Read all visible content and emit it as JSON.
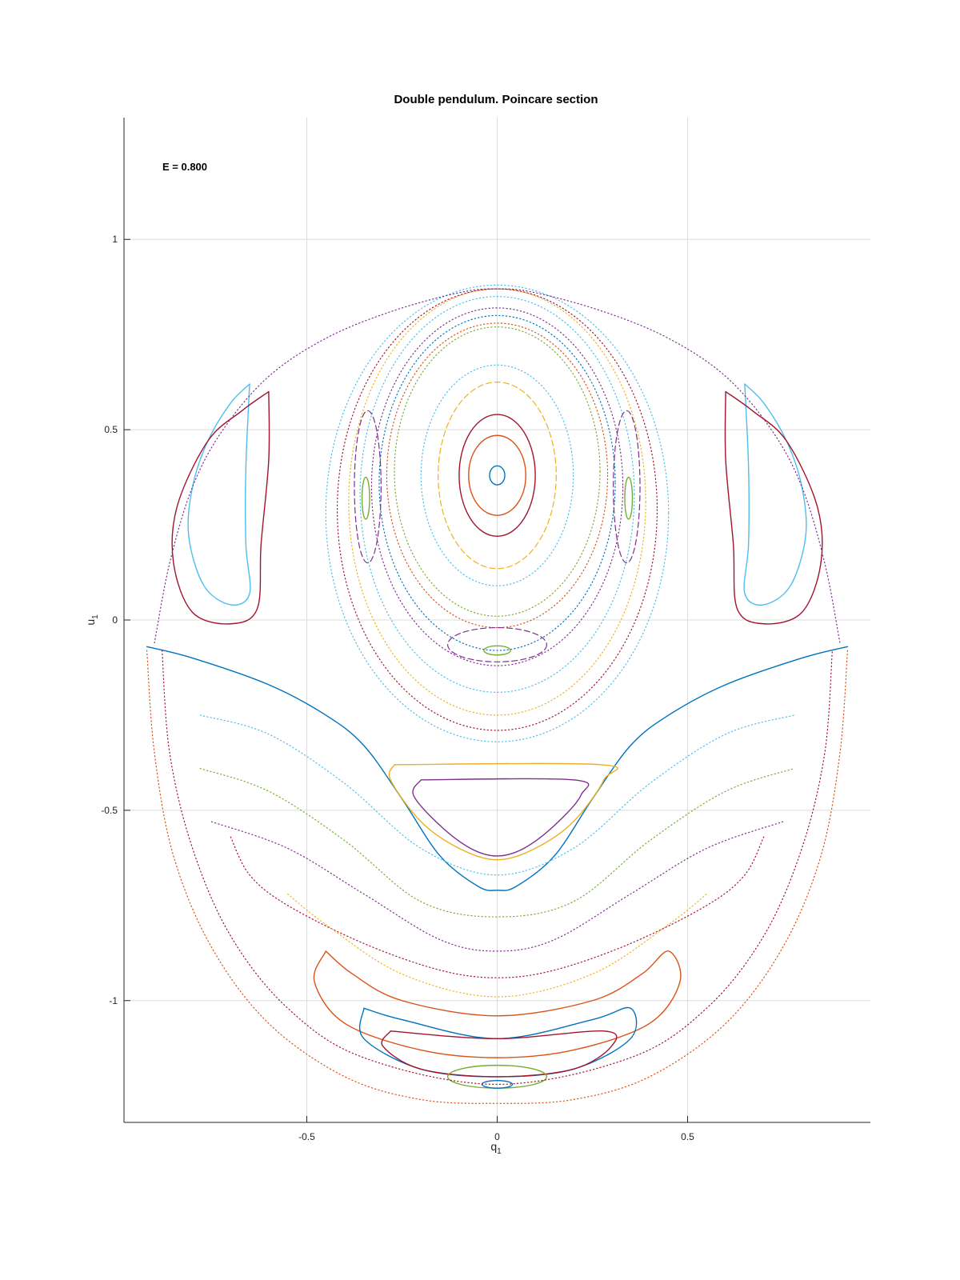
{
  "chart_data": {
    "type": "scatter",
    "title": "Double pendulum. Poincare section",
    "xlabel": "q",
    "xlabel_sub": "1",
    "ylabel": "u",
    "ylabel_sub": "1",
    "annotation": "E = 0.800",
    "xlim": [
      -0.98,
      0.98
    ],
    "ylim": [
      -1.32,
      1.32
    ],
    "xticks": [
      -0.5,
      0,
      0.5
    ],
    "xtick_labels": [
      "-0.5",
      "0",
      "0.5"
    ],
    "yticks": [
      -1,
      -0.5,
      0,
      0.5,
      1
    ],
    "ytick_labels": [
      "-1",
      "-0.5",
      "0",
      "0.5",
      "1"
    ],
    "grid": true,
    "colors": [
      "#0072BD",
      "#D95319",
      "#EDB120",
      "#7E2F8E",
      "#77AC30",
      "#4DBEEE",
      "#A2142F"
    ],
    "series": [
      {
        "shape": "ellipse",
        "style": "solid",
        "color": 0,
        "cx": 0,
        "cy": 0.38,
        "rx": 0.02,
        "ry": 0.025
      },
      {
        "shape": "ellipse",
        "style": "solid",
        "color": 1,
        "cx": 0,
        "cy": 0.38,
        "rx": 0.075,
        "ry": 0.105
      },
      {
        "shape": "ellipse",
        "style": "solid",
        "color": 6,
        "cx": 0,
        "cy": 0.38,
        "rx": 0.1,
        "ry": 0.16
      },
      {
        "shape": "ellipse",
        "style": "dash",
        "color": 2,
        "cx": 0,
        "cy": 0.38,
        "rx": 0.155,
        "ry": 0.245
      },
      {
        "shape": "ellipse",
        "style": "dot",
        "color": 5,
        "cx": 0,
        "cy": 0.38,
        "rx": 0.2,
        "ry": 0.29
      },
      {
        "shape": "ellipse",
        "style": "dot",
        "color": 4,
        "cx": 0,
        "cy": 0.39,
        "rx": 0.27,
        "ry": 0.38
      },
      {
        "shape": "ellipse",
        "style": "dot",
        "color": 1,
        "cx": 0,
        "cy": 0.38,
        "rx": 0.29,
        "ry": 0.4
      },
      {
        "shape": "ellipse",
        "style": "dot",
        "color": 0,
        "cx": 0,
        "cy": 0.36,
        "rx": 0.31,
        "ry": 0.44
      },
      {
        "shape": "ellipse",
        "style": "dot",
        "color": 3,
        "cx": 0,
        "cy": 0.35,
        "rx": 0.33,
        "ry": 0.47
      },
      {
        "shape": "ellipse",
        "style": "dot",
        "color": 5,
        "cx": 0,
        "cy": 0.33,
        "rx": 0.36,
        "ry": 0.52
      },
      {
        "shape": "ellipse",
        "style": "dot",
        "color": 2,
        "cx": 0,
        "cy": 0.31,
        "rx": 0.39,
        "ry": 0.56
      },
      {
        "shape": "ellipse",
        "style": "dot",
        "color": 6,
        "cx": 0,
        "cy": 0.29,
        "rx": 0.42,
        "ry": 0.58
      },
      {
        "shape": "ellipse",
        "style": "dot",
        "color": 5,
        "cx": 0,
        "cy": 0.28,
        "rx": 0.45,
        "ry": 0.6
      },
      {
        "shape": "ellipse",
        "style": "solid",
        "color": 4,
        "cx": -0.345,
        "cy": 0.32,
        "rx": 0.01,
        "ry": 0.055
      },
      {
        "shape": "ellipse",
        "style": "solid",
        "color": 4,
        "cx": 0.345,
        "cy": 0.32,
        "rx": 0.01,
        "ry": 0.055
      },
      {
        "shape": "ellipse",
        "style": "dash",
        "color": 3,
        "cx": -0.34,
        "cy": 0.35,
        "rx": 0.035,
        "ry": 0.2
      },
      {
        "shape": "ellipse",
        "style": "dash",
        "color": 3,
        "cx": 0.34,
        "cy": 0.35,
        "rx": 0.035,
        "ry": 0.2
      },
      {
        "shape": "ellipse",
        "style": "solid",
        "color": 4,
        "cx": 0,
        "cy": -0.08,
        "rx": 0.035,
        "ry": 0.012
      },
      {
        "shape": "ellipse",
        "style": "dash",
        "color": 3,
        "cx": 0,
        "cy": -0.065,
        "rx": 0.13,
        "ry": 0.045
      },
      {
        "shape": "pts",
        "style": "solid",
        "color": 5,
        "points": [
          [
            -0.65,
            0.62
          ],
          [
            -0.7,
            0.57
          ],
          [
            -0.76,
            0.47
          ],
          [
            -0.8,
            0.35
          ],
          [
            -0.81,
            0.22
          ],
          [
            -0.77,
            0.09
          ],
          [
            -0.7,
            0.04
          ],
          [
            -0.65,
            0.07
          ],
          [
            -0.66,
            0.2
          ],
          [
            -0.66,
            0.4
          ],
          [
            -0.65,
            0.62
          ]
        ]
      },
      {
        "shape": "pts",
        "style": "solid",
        "color": 5,
        "points": [
          [
            0.65,
            0.62
          ],
          [
            0.7,
            0.57
          ],
          [
            0.76,
            0.47
          ],
          [
            0.8,
            0.35
          ],
          [
            0.81,
            0.22
          ],
          [
            0.77,
            0.09
          ],
          [
            0.7,
            0.04
          ],
          [
            0.65,
            0.07
          ],
          [
            0.66,
            0.2
          ],
          [
            0.66,
            0.4
          ],
          [
            0.65,
            0.62
          ]
        ]
      },
      {
        "shape": "pts",
        "style": "solid",
        "color": 6,
        "points": [
          [
            -0.6,
            0.6
          ],
          [
            -0.67,
            0.55
          ],
          [
            -0.76,
            0.47
          ],
          [
            -0.84,
            0.3
          ],
          [
            -0.85,
            0.15
          ],
          [
            -0.8,
            0.02
          ],
          [
            -0.7,
            -0.01
          ],
          [
            -0.63,
            0.03
          ],
          [
            -0.62,
            0.2
          ],
          [
            -0.6,
            0.42
          ],
          [
            -0.6,
            0.6
          ]
        ]
      },
      {
        "shape": "pts",
        "style": "solid",
        "color": 6,
        "points": [
          [
            0.6,
            0.6
          ],
          [
            0.67,
            0.55
          ],
          [
            0.76,
            0.47
          ],
          [
            0.84,
            0.3
          ],
          [
            0.85,
            0.15
          ],
          [
            0.8,
            0.02
          ],
          [
            0.7,
            -0.01
          ],
          [
            0.63,
            0.03
          ],
          [
            0.62,
            0.2
          ],
          [
            0.6,
            0.42
          ],
          [
            0.6,
            0.6
          ]
        ]
      },
      {
        "shape": "pts",
        "style": "solid",
        "color": 0,
        "points": [
          [
            -0.92,
            -0.07
          ],
          [
            -0.8,
            -0.1
          ],
          [
            -0.6,
            -0.17
          ],
          [
            -0.45,
            -0.25
          ],
          [
            -0.35,
            -0.33
          ],
          [
            -0.25,
            -0.47
          ],
          [
            -0.15,
            -0.62
          ],
          [
            -0.05,
            -0.7
          ],
          [
            0,
            -0.71
          ],
          [
            0.05,
            -0.7
          ],
          [
            0.15,
            -0.62
          ],
          [
            0.25,
            -0.47
          ],
          [
            0.35,
            -0.33
          ],
          [
            0.45,
            -0.25
          ],
          [
            0.6,
            -0.17
          ],
          [
            0.8,
            -0.1
          ],
          [
            0.92,
            -0.07
          ]
        ]
      },
      {
        "shape": "pts",
        "style": "solid",
        "color": 2,
        "points": [
          [
            -0.27,
            -0.38
          ],
          [
            0.27,
            -0.38
          ],
          [
            0.28,
            -0.42
          ],
          [
            0.2,
            -0.53
          ],
          [
            0.1,
            -0.6
          ],
          [
            0,
            -0.63
          ],
          [
            -0.1,
            -0.6
          ],
          [
            -0.2,
            -0.53
          ],
          [
            -0.28,
            -0.42
          ],
          [
            -0.27,
            -0.38
          ]
        ]
      },
      {
        "shape": "pts",
        "style": "solid",
        "color": 3,
        "points": [
          [
            -0.2,
            -0.42
          ],
          [
            0.2,
            -0.42
          ],
          [
            0.22,
            -0.46
          ],
          [
            0.15,
            -0.54
          ],
          [
            0.07,
            -0.6
          ],
          [
            0,
            -0.62
          ],
          [
            -0.07,
            -0.6
          ],
          [
            -0.15,
            -0.54
          ],
          [
            -0.22,
            -0.46
          ],
          [
            -0.2,
            -0.42
          ]
        ]
      },
      {
        "shape": "pts",
        "style": "dot",
        "color": 5,
        "points": [
          [
            -0.78,
            -0.25
          ],
          [
            -0.6,
            -0.3
          ],
          [
            -0.4,
            -0.43
          ],
          [
            -0.2,
            -0.6
          ],
          [
            0,
            -0.67
          ],
          [
            0.2,
            -0.6
          ],
          [
            0.4,
            -0.43
          ],
          [
            0.6,
            -0.3
          ],
          [
            0.78,
            -0.25
          ]
        ]
      },
      {
        "shape": "pts",
        "style": "dot",
        "color": 4,
        "points": [
          [
            -0.78,
            -0.39
          ],
          [
            -0.6,
            -0.45
          ],
          [
            -0.4,
            -0.58
          ],
          [
            -0.2,
            -0.74
          ],
          [
            0,
            -0.78
          ],
          [
            0.2,
            -0.74
          ],
          [
            0.4,
            -0.58
          ],
          [
            0.6,
            -0.45
          ],
          [
            0.78,
            -0.39
          ]
        ]
      },
      {
        "shape": "pts",
        "style": "dot",
        "color": 3,
        "points": [
          [
            -0.75,
            -0.53
          ],
          [
            -0.55,
            -0.6
          ],
          [
            -0.35,
            -0.72
          ],
          [
            -0.15,
            -0.84
          ],
          [
            0,
            -0.87
          ],
          [
            0.15,
            -0.84
          ],
          [
            0.35,
            -0.72
          ],
          [
            0.55,
            -0.6
          ],
          [
            0.75,
            -0.53
          ]
        ]
      },
      {
        "shape": "pts",
        "style": "dot",
        "color": 6,
        "points": [
          [
            -0.7,
            -0.57
          ],
          [
            -0.65,
            -0.67
          ],
          [
            -0.55,
            -0.75
          ],
          [
            -0.35,
            -0.85
          ],
          [
            -0.15,
            -0.92
          ],
          [
            0,
            -0.94
          ],
          [
            0.15,
            -0.92
          ],
          [
            0.35,
            -0.85
          ],
          [
            0.55,
            -0.75
          ],
          [
            0.65,
            -0.67
          ],
          [
            0.7,
            -0.57
          ]
        ]
      },
      {
        "shape": "pts",
        "style": "dot",
        "color": 2,
        "points": [
          [
            -0.55,
            -0.72
          ],
          [
            -0.45,
            -0.8
          ],
          [
            -0.25,
            -0.93
          ],
          [
            0,
            -0.99
          ],
          [
            0.25,
            -0.93
          ],
          [
            0.45,
            -0.8
          ],
          [
            0.55,
            -0.72
          ]
        ]
      },
      {
        "shape": "pts",
        "style": "solid",
        "color": 1,
        "points": [
          [
            -0.45,
            -0.87
          ],
          [
            -0.38,
            -0.93
          ],
          [
            -0.25,
            -1.0
          ],
          [
            0,
            -1.04
          ],
          [
            0.25,
            -1.0
          ],
          [
            0.38,
            -0.93
          ],
          [
            0.45,
            -0.87
          ],
          [
            0.48,
            -0.95
          ],
          [
            0.4,
            -1.06
          ],
          [
            0.2,
            -1.13
          ],
          [
            0,
            -1.15
          ],
          [
            -0.2,
            -1.13
          ],
          [
            -0.4,
            -1.06
          ],
          [
            -0.48,
            -0.95
          ],
          [
            -0.45,
            -0.87
          ]
        ]
      },
      {
        "shape": "pts",
        "style": "solid",
        "color": 0,
        "points": [
          [
            -0.35,
            -1.02
          ],
          [
            -0.25,
            -1.05
          ],
          [
            0,
            -1.1
          ],
          [
            0.25,
            -1.05
          ],
          [
            0.35,
            -1.02
          ],
          [
            0.35,
            -1.1
          ],
          [
            0.2,
            -1.18
          ],
          [
            0,
            -1.2
          ],
          [
            -0.2,
            -1.18
          ],
          [
            -0.35,
            -1.1
          ],
          [
            -0.35,
            -1.02
          ]
        ]
      },
      {
        "shape": "pts",
        "style": "solid",
        "color": 6,
        "points": [
          [
            -0.28,
            -1.08
          ],
          [
            0,
            -1.1
          ],
          [
            0.28,
            -1.08
          ],
          [
            0.3,
            -1.12
          ],
          [
            0.2,
            -1.18
          ],
          [
            0,
            -1.2
          ],
          [
            -0.2,
            -1.18
          ],
          [
            -0.3,
            -1.12
          ],
          [
            -0.28,
            -1.08
          ]
        ]
      },
      {
        "shape": "ellipse",
        "style": "solid",
        "color": 4,
        "cx": 0,
        "cy": -1.2,
        "rx": 0.13,
        "ry": 0.03
      },
      {
        "shape": "ellipse",
        "style": "solid",
        "color": 0,
        "cx": 0,
        "cy": -1.22,
        "rx": 0.04,
        "ry": 0.01
      },
      {
        "shape": "pts",
        "style": "dot",
        "color": 1,
        "points": [
          [
            -0.92,
            -0.08
          ],
          [
            -0.9,
            -0.35
          ],
          [
            -0.85,
            -0.62
          ],
          [
            -0.75,
            -0.86
          ],
          [
            -0.6,
            -1.06
          ],
          [
            -0.4,
            -1.2
          ],
          [
            -0.2,
            -1.26
          ],
          [
            0,
            -1.27
          ],
          [
            0.2,
            -1.26
          ],
          [
            0.4,
            -1.2
          ],
          [
            0.6,
            -1.06
          ],
          [
            0.75,
            -0.86
          ],
          [
            0.85,
            -0.62
          ],
          [
            0.9,
            -0.35
          ],
          [
            0.92,
            -0.08
          ]
        ]
      },
      {
        "shape": "pts",
        "style": "dot",
        "color": 6,
        "points": [
          [
            -0.88,
            -0.08
          ],
          [
            -0.86,
            -0.35
          ],
          [
            -0.8,
            -0.6
          ],
          [
            -0.7,
            -0.83
          ],
          [
            -0.55,
            -1.02
          ],
          [
            -0.35,
            -1.15
          ],
          [
            0,
            -1.22
          ],
          [
            0.35,
            -1.15
          ],
          [
            0.55,
            -1.02
          ],
          [
            0.7,
            -0.83
          ],
          [
            0.8,
            -0.6
          ],
          [
            0.86,
            -0.35
          ],
          [
            0.88,
            -0.08
          ]
        ]
      },
      {
        "shape": "pts",
        "style": "dot",
        "color": 3,
        "points": [
          [
            -0.9,
            -0.06
          ],
          [
            -0.86,
            0.15
          ],
          [
            -0.8,
            0.35
          ],
          [
            -0.72,
            0.5
          ],
          [
            -0.6,
            0.64
          ],
          [
            -0.45,
            0.74
          ],
          [
            -0.28,
            0.81
          ],
          [
            -0.1,
            0.86
          ],
          [
            0,
            0.87
          ],
          [
            0.1,
            0.86
          ],
          [
            0.28,
            0.81
          ],
          [
            0.45,
            0.74
          ],
          [
            0.6,
            0.64
          ],
          [
            0.72,
            0.5
          ],
          [
            0.8,
            0.35
          ],
          [
            0.86,
            0.15
          ],
          [
            0.9,
            -0.06
          ]
        ]
      }
    ]
  }
}
